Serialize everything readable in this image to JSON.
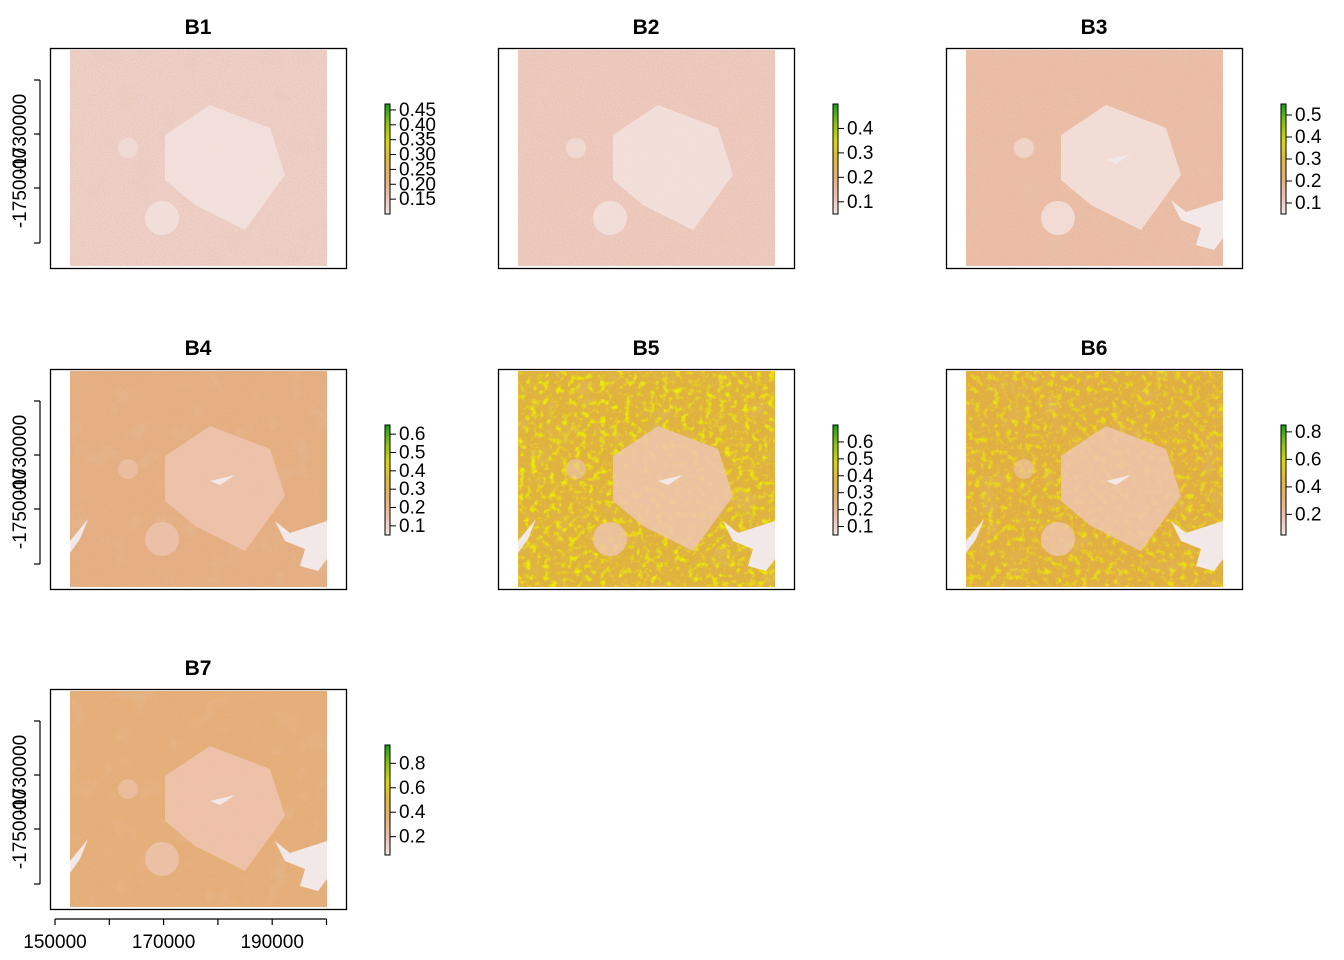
{
  "chart_data": [
    {
      "type": "heatmap",
      "title": "B1",
      "x_axis_shown": false,
      "y_axis_shown": true,
      "y_ticks": [
        -1730000,
        -1750000
      ],
      "legend": {
        "ticks": [
          0.15,
          0.2,
          0.25,
          0.3,
          0.35,
          0.4,
          0.45
        ],
        "tick_labels": [
          "0.15",
          "0.20",
          "0.25",
          "0.30",
          "0.35",
          "0.40",
          "0.45"
        ],
        "range": [
          0.1,
          0.47
        ]
      },
      "base_color": "#f0d0c8"
    },
    {
      "type": "heatmap",
      "title": "B2",
      "x_axis_shown": false,
      "y_axis_shown": false,
      "legend": {
        "ticks": [
          0.1,
          0.2,
          0.3,
          0.4
        ],
        "tick_labels": [
          "0.1",
          "0.2",
          "0.3",
          "0.4"
        ],
        "range": [
          0.05,
          0.5
        ]
      },
      "base_color": "#f0cbc0"
    },
    {
      "type": "heatmap",
      "title": "B3",
      "x_axis_shown": false,
      "y_axis_shown": false,
      "legend": {
        "ticks": [
          0.1,
          0.2,
          0.3,
          0.4,
          0.5
        ],
        "tick_labels": [
          "0.1",
          "0.2",
          "0.3",
          "0.4",
          "0.5"
        ],
        "range": [
          0.05,
          0.55
        ]
      },
      "base_color": "#eebfa8"
    },
    {
      "type": "heatmap",
      "title": "B4",
      "x_axis_shown": false,
      "y_axis_shown": true,
      "y_ticks": [
        -1730000,
        -1750000
      ],
      "legend": {
        "ticks": [
          0.1,
          0.2,
          0.3,
          0.4,
          0.5,
          0.6
        ],
        "tick_labels": [
          "0.1",
          "0.2",
          "0.3",
          "0.4",
          "0.5",
          "0.6"
        ],
        "range": [
          0.05,
          0.65
        ]
      },
      "base_color": "#e8b083"
    },
    {
      "type": "heatmap",
      "title": "B5",
      "x_axis_shown": false,
      "y_axis_shown": false,
      "legend": {
        "ticks": [
          0.1,
          0.2,
          0.3,
          0.4,
          0.5,
          0.6
        ],
        "tick_labels": [
          "0.1",
          "0.2",
          "0.3",
          "0.4",
          "0.5",
          "0.6"
        ],
        "range": [
          0.05,
          0.7
        ]
      },
      "base_color": "#e2b43c"
    },
    {
      "type": "heatmap",
      "title": "B6",
      "x_axis_shown": false,
      "y_axis_shown": false,
      "legend": {
        "ticks": [
          0.2,
          0.4,
          0.6,
          0.8
        ],
        "tick_labels": [
          "0.2",
          "0.4",
          "0.6",
          "0.8"
        ],
        "range": [
          0.05,
          0.85
        ]
      },
      "base_color": "#e4b040"
    },
    {
      "type": "heatmap",
      "title": "B7",
      "x_axis_shown": true,
      "x_ticks": [
        150000,
        160000,
        170000,
        180000,
        190000,
        200000
      ],
      "x_tick_labels": [
        "150000",
        "",
        "170000",
        "",
        "190000",
        ""
      ],
      "y_axis_shown": true,
      "y_ticks": [
        -1730000,
        -1750000
      ],
      "legend": {
        "ticks": [
          0.2,
          0.4,
          0.6,
          0.8
        ],
        "tick_labels": [
          "0.2",
          "0.4",
          "0.6",
          "0.8"
        ],
        "range": [
          0.05,
          0.95
        ]
      },
      "base_color": "#e8b07a"
    }
  ],
  "colors": {
    "panel_border": "#000000",
    "water": "#f2e8e8",
    "legend_ramp": [
      "#f2e6e6",
      "#eebfac",
      "#e9b078",
      "#e3b83c",
      "#d8d800",
      "#8ac400",
      "#169e16"
    ]
  }
}
